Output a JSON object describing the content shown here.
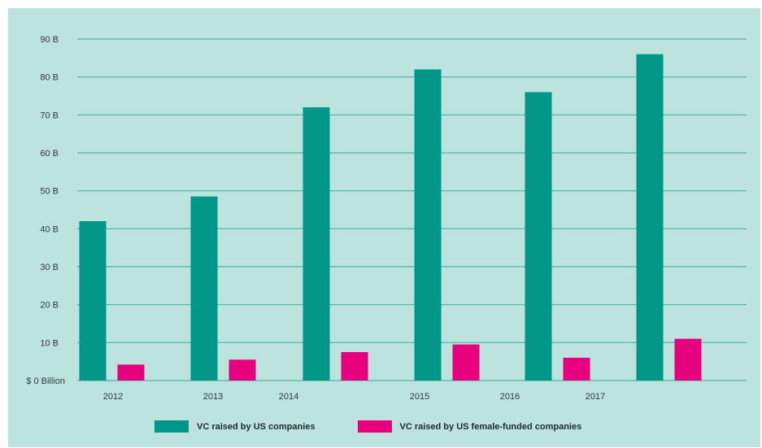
{
  "chart_data": {
    "type": "bar",
    "title": "",
    "xlabel": "",
    "ylabel": "",
    "ylim": [
      0,
      90
    ],
    "y_ticks": [
      "$ 0 Billion",
      "10 B",
      "20 B",
      "30 B",
      "40 B",
      "50 B",
      "60 B",
      "70 B",
      "80 B",
      "90 B"
    ],
    "x_tick_labels": [
      "2012",
      "2013",
      "2014",
      "2015",
      "2016",
      "2017"
    ],
    "grid": true,
    "legend_position": "bottom",
    "series": [
      {
        "name": "VC raised by US companies",
        "color": "#009688",
        "values": [
          42,
          48.5,
          72,
          82,
          76,
          86
        ]
      },
      {
        "name": "VC raised by US female-funded companies",
        "color": "#e6007e",
        "values": [
          4.2,
          5.5,
          7.5,
          9.5,
          6,
          11
        ]
      }
    ]
  }
}
